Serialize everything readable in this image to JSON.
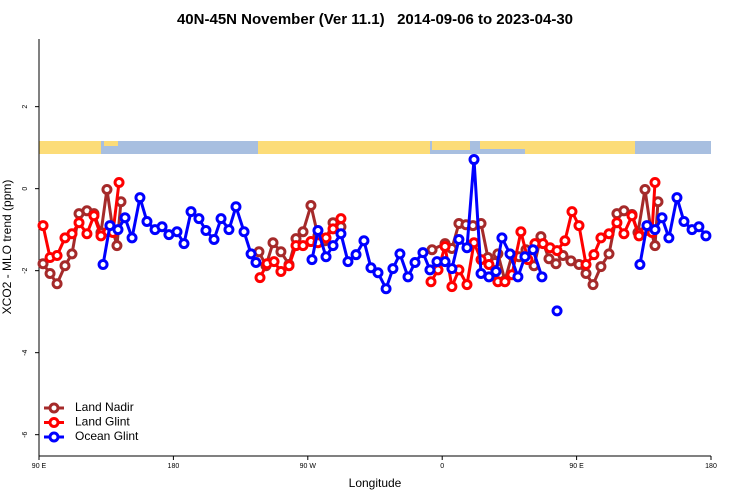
{
  "chart_data": {
    "type": "line",
    "title": "40N-45N November (Ver 11.1)   2014-09-06 to 2023-04-30",
    "x_label": "Longitude",
    "y_label": "XCO2 - MLO trend (ppm)",
    "xlim": [
      90,
      540
    ],
    "xticks": [
      {
        "value": 90,
        "label": "90 E"
      },
      180,
      {
        "value": 270,
        "label": "90 W"
      },
      {
        "value": 360,
        "label": "0"
      },
      {
        "value": 450,
        "label": "90 E"
      },
      180
    ],
    "ylim": [
      -6.52,
      3.65
    ],
    "yticks": [
      2,
      0,
      -2,
      -4,
      -6
    ],
    "legend_position": "bottom-left",
    "series": [
      {
        "name": "Land Nadir",
        "color": "#a52a2a",
        "x": [
          92.7,
          97.4,
          102.1,
          107.4,
          112.1,
          116.8,
          122.1,
          126.8,
          131.5,
          135.5,
          139.5,
          142.2,
          144.9,
          null,
          237.3,
          242.0,
          246.7,
          252.0,
          257.4,
          262.1,
          266.8,
          272.1,
          276.8,
          281.5,
          286.9,
          292.2,
          null,
          353.2,
          361.9,
          366.5,
          371.2,
          375.9,
          380.6,
          386.0,
          390.6,
          395.3,
          397.3,
          402.0,
          406.7,
          411.4,
          416.1,
          421.5,
          426.1,
          431.5,
          436.2,
          440.9,
          446.2,
          451.6,
          456.3,
          461.0,
          466.3,
          471.7,
          477.0,
          481.7,
          487.1,
          491.1,
          495.8,
          499.8,
          502.5,
          504.5
        ],
        "values": [
          -1.83,
          -2.07,
          -2.32,
          -1.88,
          -1.59,
          -0.61,
          -0.54,
          -0.61,
          -1.07,
          -0.02,
          -1.02,
          -1.39,
          -0.32,
          null,
          -1.54,
          -1.88,
          -1.32,
          -1.54,
          -1.85,
          -1.22,
          -1.05,
          -0.41,
          -1.15,
          -1.27,
          -0.83,
          -0.93,
          null,
          -1.49,
          -1.34,
          -1.46,
          -0.85,
          -0.88,
          -0.9,
          -0.85,
          -1.68,
          -1.8,
          -1.59,
          -2.24,
          -1.63,
          -1.66,
          -1.49,
          -1.88,
          -1.17,
          -1.71,
          -1.83,
          -1.63,
          -1.76,
          -1.85,
          -2.07,
          -2.34,
          -1.9,
          -1.59,
          -0.61,
          -0.54,
          -0.63,
          -1.07,
          -0.02,
          -1.02,
          -1.39,
          -0.32
        ]
      },
      {
        "name": "Land Glint",
        "color": "#ff0000",
        "x": [
          92.7,
          97.4,
          102.1,
          107.4,
          112.1,
          116.8,
          122.1,
          126.8,
          131.5,
          136.2,
          139.5,
          143.6,
          null,
          238.0,
          242.7,
          247.4,
          252.0,
          257.4,
          262.1,
          266.8,
          272.1,
          276.8,
          282.2,
          286.9,
          292.2,
          null,
          352.5,
          357.2,
          361.9,
          366.5,
          371.2,
          376.6,
          381.3,
          386.0,
          391.3,
          397.3,
          402.0,
          406.7,
          412.7,
          417.4,
          422.1,
          427.5,
          432.2,
          436.9,
          442.2,
          446.9,
          451.6,
          456.3,
          461.6,
          466.3,
          471.7,
          477.0,
          481.7,
          487.1,
          491.8,
          496.4,
          500.5,
          502.5
        ],
        "values": [
          -0.9,
          -1.68,
          -1.63,
          -1.2,
          -1.1,
          -0.83,
          -1.1,
          -0.66,
          -1.15,
          -1.05,
          -1.07,
          0.15,
          null,
          -2.17,
          -1.83,
          -1.78,
          -2.02,
          -1.88,
          -1.39,
          -1.39,
          -1.29,
          -1.32,
          -1.2,
          -0.98,
          -0.73,
          null,
          -2.27,
          -1.98,
          -1.41,
          -2.39,
          -1.98,
          -2.34,
          -1.32,
          -1.73,
          -1.85,
          -2.27,
          -2.27,
          -2.1,
          -1.05,
          -1.73,
          -1.34,
          -1.34,
          -1.44,
          -1.51,
          -1.27,
          -0.56,
          -0.9,
          -1.85,
          -1.61,
          -1.2,
          -1.1,
          -0.83,
          -1.1,
          -0.66,
          -1.15,
          -1.02,
          -1.07,
          0.15
        ]
      },
      {
        "name": "Ocean Glint",
        "color": "#0000ff",
        "x": [
          132.9,
          137.5,
          142.9,
          147.6,
          152.3,
          157.6,
          162.3,
          167.7,
          172.4,
          177.0,
          182.4,
          187.1,
          191.8,
          197.1,
          201.8,
          207.2,
          211.9,
          217.2,
          221.9,
          227.3,
          232.0,
          235.3,
          null,
          272.8,
          276.8,
          282.2,
          286.9,
          292.2,
          296.9,
          302.3,
          307.6,
          312.3,
          317.0,
          322.4,
          327.0,
          331.7,
          337.1,
          341.8,
          347.1,
          351.8,
          356.5,
          361.9,
          366.5,
          371.2,
          376.6,
          381.3,
          386.0,
          391.3,
          396.0,
          400.0,
          405.4,
          410.7,
          415.4,
          420.8,
          426.8,
          null,
          436.9,
          null,
          492.4,
          497.1,
          502.5,
          507.2,
          511.8,
          517.2,
          521.9,
          527.3,
          531.9,
          536.6
        ],
        "values": [
          -1.85,
          -0.9,
          -1.0,
          -0.71,
          -1.2,
          -0.22,
          -0.8,
          -1.0,
          -0.93,
          -1.12,
          -1.05,
          -1.34,
          -0.56,
          -0.73,
          -1.02,
          -1.24,
          -0.73,
          -1.0,
          -0.44,
          -1.05,
          -1.59,
          -1.8,
          null,
          -1.73,
          -1.02,
          -1.66,
          -1.39,
          -1.1,
          -1.78,
          -1.61,
          -1.27,
          -1.93,
          -2.05,
          -2.44,
          -1.95,
          -1.59,
          -2.15,
          -1.8,
          -1.56,
          -1.98,
          -1.78,
          -1.78,
          -1.95,
          -1.24,
          -1.44,
          0.71,
          -2.07,
          -2.15,
          -2.02,
          -1.2,
          -1.59,
          -2.15,
          -1.66,
          -1.49,
          -2.15,
          null,
          -2.98,
          null,
          -1.85,
          -0.9,
          -1.0,
          -0.71,
          -1.2,
          -0.22,
          -0.8,
          -1.0,
          -0.93,
          -1.15
        ]
      }
    ]
  }
}
